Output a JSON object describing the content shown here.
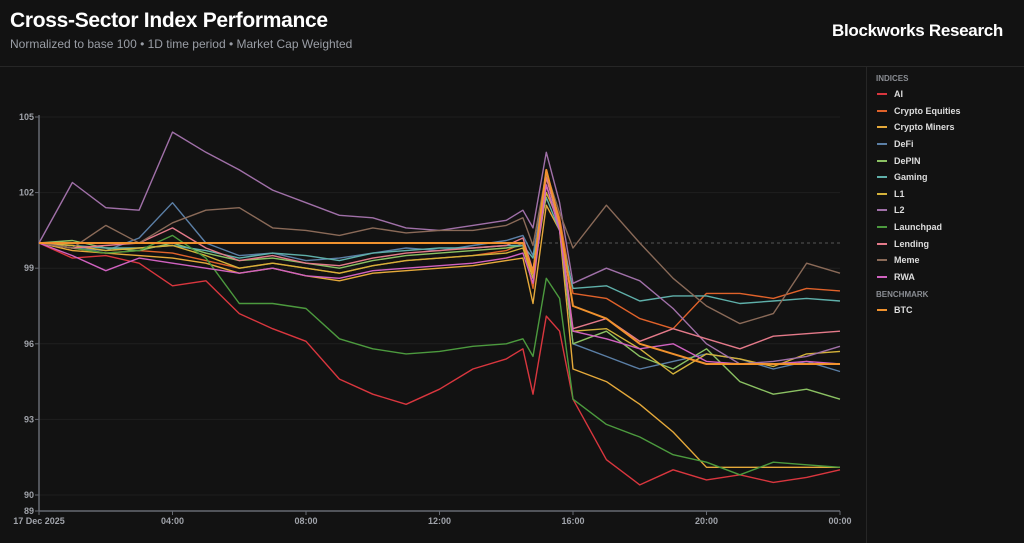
{
  "header": {
    "title": "Cross-Sector Index Performance",
    "subtitle": "Normalized to base 100 • 1D time period • Market Cap Weighted",
    "brand": "Blockworks Research"
  },
  "legend": {
    "indices_heading": "INDICES",
    "benchmark_heading": "BENCHMARK"
  },
  "chart_data": {
    "type": "line",
    "title": "Cross-Sector Index Performance",
    "ylabel": "",
    "xlabel": "",
    "ylim": [
      89,
      105
    ],
    "xlim_hours": [
      0,
      24
    ],
    "y_ticks": [
      105,
      102,
      99,
      96,
      93,
      90,
      89
    ],
    "x_ticks": [
      {
        "h": 0,
        "label": "17 Dec 2025"
      },
      {
        "h": 4,
        "label": "04:00"
      },
      {
        "h": 8,
        "label": "08:00"
      },
      {
        "h": 12,
        "label": "12:00"
      },
      {
        "h": 16,
        "label": "16:00"
      },
      {
        "h": 20,
        "label": "20:00"
      },
      {
        "h": 24,
        "label": "00:00"
      }
    ],
    "baseline": 100,
    "x": [
      0,
      1,
      2,
      3,
      4,
      5,
      6,
      7,
      8,
      9,
      10,
      11,
      12,
      13,
      14,
      14.5,
      14.8,
      15.2,
      15.6,
      16,
      17,
      18,
      19,
      20,
      21,
      22,
      23,
      24
    ],
    "series": [
      {
        "name": "AI",
        "group": "indices",
        "color": "#d9363e",
        "values": [
          100,
          99.4,
          99.5,
          99.2,
          98.3,
          98.5,
          97.2,
          96.6,
          96.1,
          94.6,
          94.0,
          93.6,
          94.2,
          95.0,
          95.4,
          95.8,
          94.0,
          97.1,
          96.5,
          93.8,
          91.4,
          90.4,
          91.0,
          90.6,
          90.8,
          90.5,
          90.7,
          91.0
        ]
      },
      {
        "name": "Crypto Equities",
        "group": "indices",
        "color": "#e0622a",
        "values": [
          100,
          99.8,
          99.6,
          99.7,
          99.6,
          99.3,
          99.0,
          99.2,
          99.0,
          98.8,
          99.1,
          99.3,
          99.4,
          99.5,
          99.7,
          100.0,
          98.2,
          102.6,
          101.0,
          98.0,
          97.8,
          97.0,
          96.6,
          98.0,
          98.0,
          97.8,
          98.2,
          98.1
        ]
      },
      {
        "name": "Crypto Miners",
        "group": "indices",
        "color": "#e5a93a",
        "values": [
          100,
          99.7,
          99.6,
          99.5,
          99.4,
          99.2,
          98.8,
          99.0,
          98.7,
          98.5,
          98.8,
          98.9,
          99.0,
          99.1,
          99.3,
          99.4,
          97.6,
          101.5,
          100.5,
          95.0,
          94.5,
          93.6,
          92.5,
          91.1,
          91.1,
          91.1,
          91.1,
          91.1
        ]
      },
      {
        "name": "DeFi",
        "group": "indices",
        "color": "#5b7fa6",
        "values": [
          100,
          99.8,
          99.7,
          100.2,
          101.6,
          100.0,
          99.5,
          99.6,
          99.3,
          99.4,
          99.6,
          99.8,
          99.7,
          99.9,
          100.1,
          100.3,
          99.5,
          102.7,
          100.6,
          96.0,
          95.5,
          95.0,
          95.3,
          95.6,
          95.4,
          95.0,
          95.3,
          94.9
        ]
      },
      {
        "name": "DePIN",
        "group": "indices",
        "color": "#8bc163",
        "values": [
          100,
          100.1,
          99.8,
          99.7,
          100.0,
          99.6,
          99.3,
          99.4,
          99.2,
          99.0,
          99.3,
          99.5,
          99.6,
          99.7,
          99.8,
          99.9,
          98.6,
          102.3,
          100.6,
          96.0,
          96.5,
          95.5,
          95.0,
          95.8,
          94.5,
          94.0,
          94.2,
          93.8
        ]
      },
      {
        "name": "Gaming",
        "group": "indices",
        "color": "#5fb0aa",
        "values": [
          100,
          99.9,
          99.8,
          99.8,
          99.9,
          99.7,
          99.4,
          99.6,
          99.5,
          99.3,
          99.6,
          99.7,
          99.8,
          99.8,
          99.9,
          99.9,
          99.4,
          101.8,
          100.5,
          98.2,
          98.3,
          97.7,
          97.9,
          97.9,
          97.6,
          97.7,
          97.8,
          97.7
        ]
      },
      {
        "name": "L1",
        "group": "indices",
        "color": "#d4b23a",
        "values": [
          100,
          99.9,
          99.7,
          99.8,
          99.9,
          99.5,
          99.0,
          99.2,
          99.0,
          98.8,
          99.1,
          99.3,
          99.4,
          99.5,
          99.6,
          99.8,
          98.6,
          102.0,
          100.8,
          96.5,
          96.6,
          95.8,
          94.8,
          95.6,
          95.4,
          95.1,
          95.6,
          95.7
        ]
      },
      {
        "name": "L2",
        "group": "indices",
        "color": "#a070a8",
        "values": [
          100,
          102.4,
          101.4,
          101.3,
          104.4,
          103.6,
          102.9,
          102.1,
          101.6,
          101.1,
          101.0,
          100.6,
          100.5,
          100.7,
          100.9,
          101.3,
          100.6,
          103.6,
          101.6,
          98.4,
          99.0,
          98.5,
          97.4,
          96.0,
          95.2,
          95.3,
          95.5,
          95.9
        ]
      },
      {
        "name": "Launchpad",
        "group": "indices",
        "color": "#4c9a3e",
        "values": [
          100,
          99.8,
          99.6,
          99.7,
          100.3,
          99.4,
          97.6,
          97.6,
          97.4,
          96.2,
          95.8,
          95.6,
          95.7,
          95.9,
          96.0,
          96.2,
          95.5,
          98.6,
          97.8,
          93.8,
          92.8,
          92.3,
          91.6,
          91.3,
          90.8,
          91.3,
          91.2,
          91.1
        ]
      },
      {
        "name": "Lending",
        "group": "indices",
        "color": "#e47a8a",
        "values": [
          100,
          99.8,
          99.9,
          100.0,
          100.6,
          99.8,
          99.3,
          99.5,
          99.2,
          99.1,
          99.4,
          99.6,
          99.7,
          99.8,
          99.9,
          100.2,
          98.9,
          102.6,
          100.7,
          96.6,
          97.0,
          96.1,
          96.6,
          96.2,
          95.8,
          96.3,
          96.4,
          96.5
        ]
      },
      {
        "name": "Meme",
        "group": "indices",
        "color": "#8a6a58",
        "values": [
          100,
          99.8,
          100.7,
          100.0,
          100.8,
          101.3,
          101.4,
          100.6,
          100.5,
          100.3,
          100.6,
          100.4,
          100.5,
          100.5,
          100.7,
          101.0,
          99.9,
          102.8,
          101.2,
          99.8,
          101.5,
          100.0,
          98.6,
          97.5,
          96.8,
          97.2,
          99.2,
          98.8
        ]
      },
      {
        "name": "RWA",
        "group": "indices",
        "color": "#d062c0",
        "values": [
          100,
          99.5,
          98.9,
          99.4,
          99.2,
          99.0,
          98.8,
          99.0,
          98.7,
          98.6,
          98.9,
          99.0,
          99.1,
          99.2,
          99.4,
          99.6,
          98.4,
          102.3,
          100.5,
          96.5,
          96.2,
          95.8,
          96.0,
          95.3,
          95.2,
          95.2,
          95.3,
          95.2
        ]
      },
      {
        "name": "BTC",
        "group": "benchmark",
        "color": "#f0922e",
        "values": [
          100,
          100,
          100,
          100,
          100,
          100,
          100,
          100,
          100,
          100,
          100,
          100,
          100,
          100,
          100,
          100,
          98.8,
          102.9,
          100.8,
          97.5,
          97.0,
          96.0,
          95.6,
          95.2,
          95.2,
          95.2,
          95.2,
          95.2
        ]
      }
    ]
  }
}
